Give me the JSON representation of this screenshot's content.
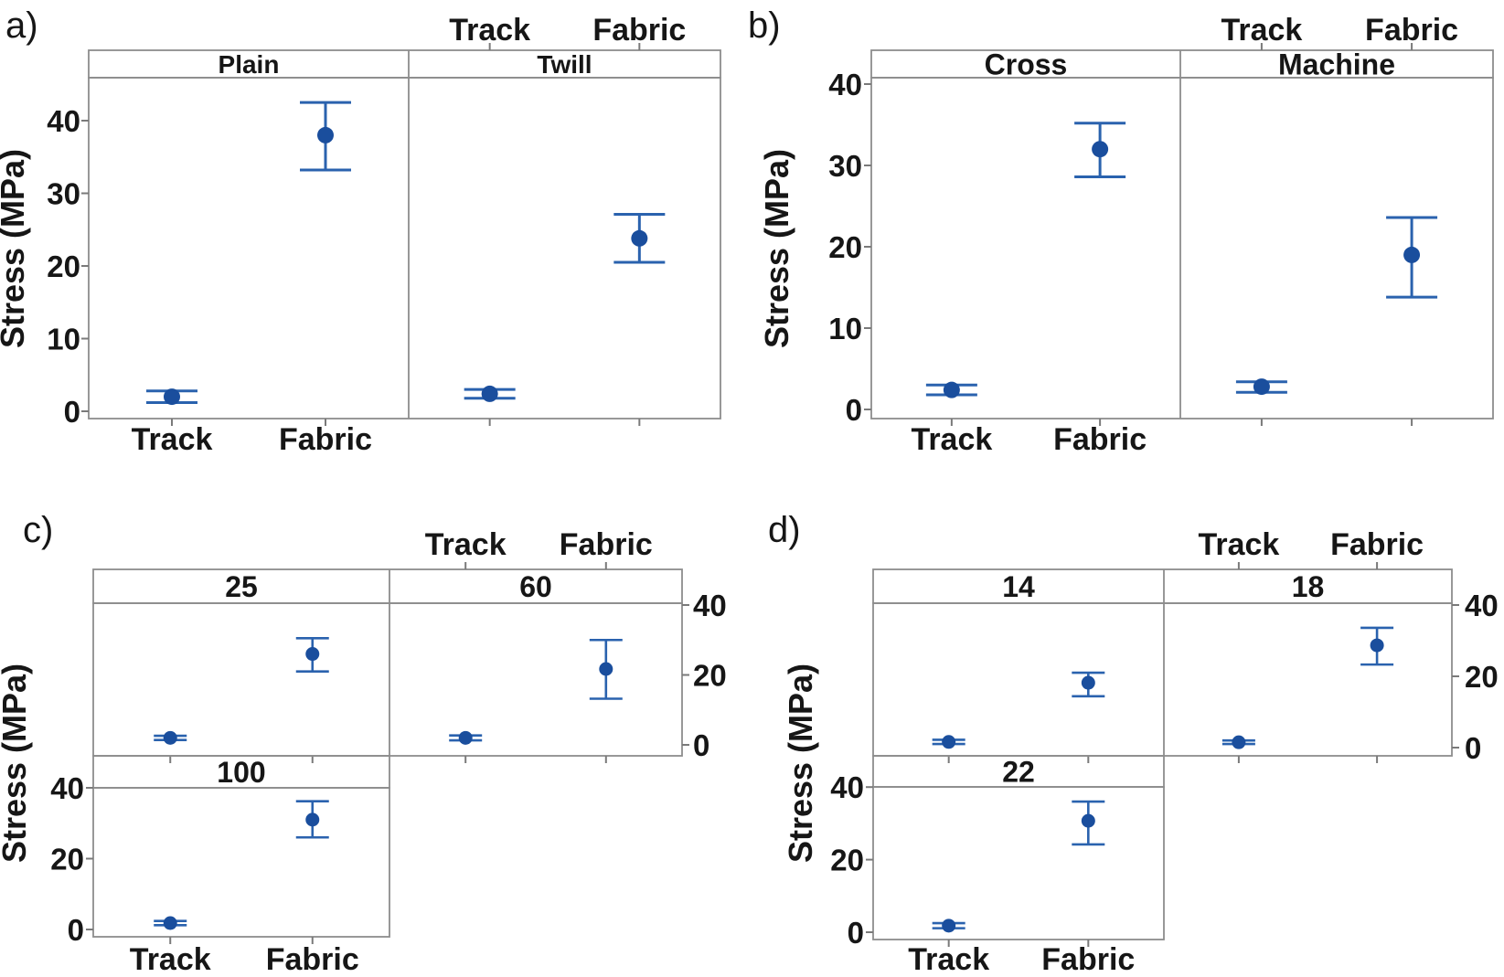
{
  "figure": {
    "colors": {
      "marker_blue": "#1a4e9d",
      "line_blue": "#2a62ae",
      "border_gray": "#8d8d8d",
      "tick_gray": "#7a7a7a",
      "text": "#161616",
      "background": "#ffffff"
    }
  },
  "chart_data": [
    {
      "id": "a",
      "panel_label": "a)",
      "type": "interval-plot",
      "ylabel": "Stress (MPa)",
      "categories": [
        "Track",
        "Fabric"
      ],
      "yticks": [
        0,
        10,
        20,
        30,
        40
      ],
      "ylim": [
        0,
        46
      ],
      "legend": "none",
      "top_axis_above_facet": "Twill",
      "bottom_axis_below_facet": "Plain",
      "facets": [
        {
          "name": "Plain",
          "points": [
            {
              "category": "Track",
              "mean": 2.0,
              "ci_low": 1.2,
              "ci_high": 2.8
            },
            {
              "category": "Fabric",
              "mean": 38.0,
              "ci_low": 33.2,
              "ci_high": 42.5
            }
          ]
        },
        {
          "name": "Twill",
          "points": [
            {
              "category": "Track",
              "mean": 2.4,
              "ci_low": 1.8,
              "ci_high": 3.0
            },
            {
              "category": "Fabric",
              "mean": 23.8,
              "ci_low": 20.5,
              "ci_high": 27.1
            }
          ]
        }
      ]
    },
    {
      "id": "b",
      "panel_label": "b)",
      "type": "interval-plot",
      "ylabel": "Stress (MPa)",
      "categories": [
        "Track",
        "Fabric"
      ],
      "yticks": [
        0,
        10,
        20,
        30,
        40
      ],
      "ylim": [
        0,
        41
      ],
      "legend": "none",
      "top_axis_above_facet": "Machine",
      "bottom_axis_below_facet": "Cross",
      "facets": [
        {
          "name": "Cross",
          "points": [
            {
              "category": "Track",
              "mean": 2.4,
              "ci_low": 1.8,
              "ci_high": 3.0
            },
            {
              "category": "Fabric",
              "mean": 32.0,
              "ci_low": 28.6,
              "ci_high": 35.2
            }
          ]
        },
        {
          "name": "Machine",
          "points": [
            {
              "category": "Track",
              "mean": 2.8,
              "ci_low": 2.1,
              "ci_high": 3.4
            },
            {
              "category": "Fabric",
              "mean": 19.0,
              "ci_low": 13.8,
              "ci_high": 23.6
            }
          ]
        }
      ]
    },
    {
      "id": "c",
      "panel_label": "c)",
      "type": "interval-plot",
      "ylabel": "Stress (MPa)",
      "categories": [
        "Track",
        "Fabric"
      ],
      "yticks": [
        0,
        20,
        40
      ],
      "ylim": [
        0,
        40
      ],
      "legend": "none",
      "top_axis_above_facet": "60",
      "bottom_axis_below_facet": "100",
      "facets": [
        {
          "name": "25",
          "points": [
            {
              "category": "Track",
              "mean": 2.0,
              "ci_low": 1.4,
              "ci_high": 2.6
            },
            {
              "category": "Fabric",
              "mean": 26.0,
              "ci_low": 21.0,
              "ci_high": 30.5
            }
          ]
        },
        {
          "name": "60",
          "points": [
            {
              "category": "Track",
              "mean": 2.0,
              "ci_low": 1.3,
              "ci_high": 2.7
            },
            {
              "category": "Fabric",
              "mean": 21.7,
              "ci_low": 13.2,
              "ci_high": 30.0
            }
          ]
        },
        {
          "name": "100",
          "points": [
            {
              "category": "Track",
              "mean": 1.8,
              "ci_low": 1.2,
              "ci_high": 2.4
            },
            {
              "category": "Fabric",
              "mean": 31.0,
              "ci_low": 26.0,
              "ci_high": 36.2
            }
          ]
        }
      ]
    },
    {
      "id": "d",
      "panel_label": "d)",
      "type": "interval-plot",
      "ylabel": "Stress (MPa)",
      "categories": [
        "Track",
        "Fabric"
      ],
      "yticks": [
        0,
        20,
        40
      ],
      "ylim": [
        0,
        40
      ],
      "legend": "none",
      "top_axis_above_facet": "18",
      "bottom_axis_below_facet": "22",
      "facets": [
        {
          "name": "14",
          "points": [
            {
              "category": "Track",
              "mean": 1.6,
              "ci_low": 1.0,
              "ci_high": 2.2
            },
            {
              "category": "Fabric",
              "mean": 18.2,
              "ci_low": 14.4,
              "ci_high": 21.0
            }
          ]
        },
        {
          "name": "18",
          "points": [
            {
              "category": "Track",
              "mean": 1.5,
              "ci_low": 1.0,
              "ci_high": 2.0
            },
            {
              "category": "Fabric",
              "mean": 28.7,
              "ci_low": 23.3,
              "ci_high": 33.6
            }
          ]
        },
        {
          "name": "22",
          "points": [
            {
              "category": "Track",
              "mean": 1.8,
              "ci_low": 1.1,
              "ci_high": 2.5
            },
            {
              "category": "Fabric",
              "mean": 30.7,
              "ci_low": 24.2,
              "ci_high": 36.0
            }
          ]
        }
      ]
    }
  ]
}
